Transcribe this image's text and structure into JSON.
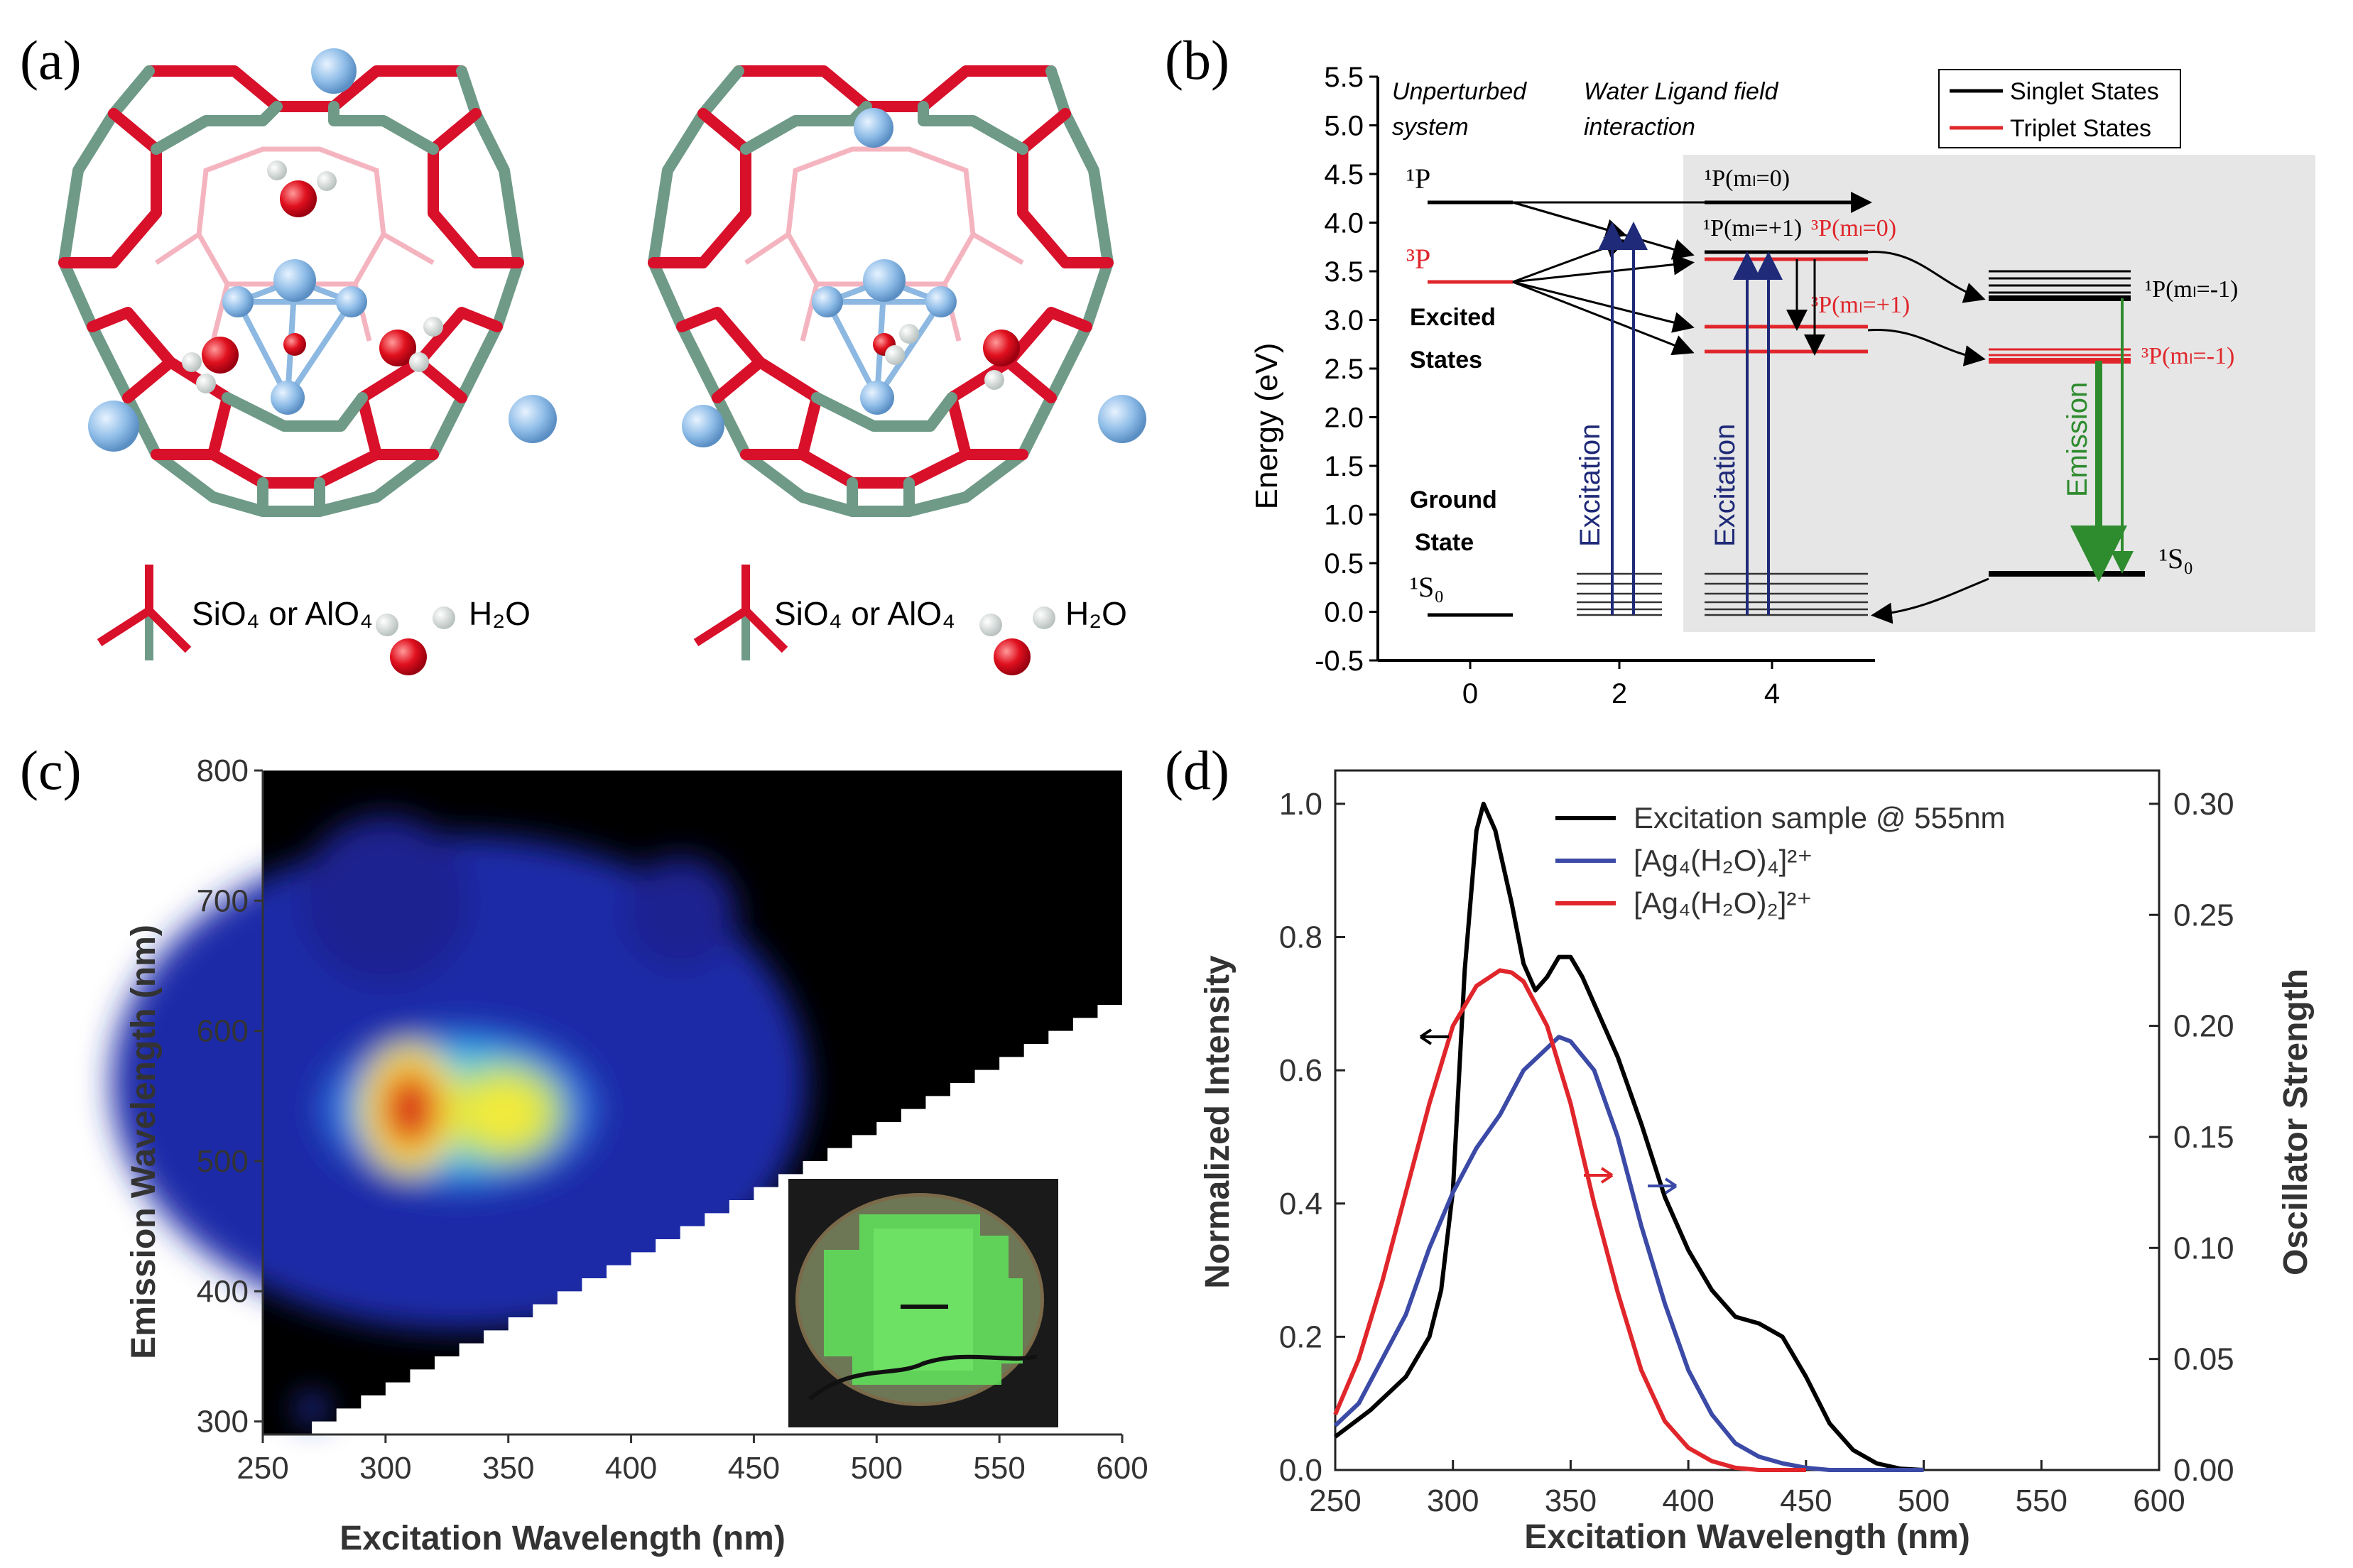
{
  "panels": {
    "a": {
      "label": "(a)",
      "legend_left": {
        "tetra_text": "SiO₄ or AlO₄",
        "water_text": "H₂O"
      },
      "legend_right": {
        "tetra_text": "SiO₄ or AlO₄",
        "water_text": "H₂O"
      }
    },
    "b": {
      "label": "(b)",
      "header_left": [
        "Unperturbed",
        "system"
      ],
      "header_mid": [
        "Water Ligand field",
        "interaction"
      ],
      "legend": [
        "Singlet States",
        "Triplet States"
      ],
      "ylabel": "Energy (eV)",
      "yticks": [
        "5.5",
        "5.0",
        "4.5",
        "4.0",
        "3.5",
        "3.0",
        "2.5",
        "2.0",
        "1.5",
        "1.0",
        "0.5",
        "0.0",
        "-0.5"
      ],
      "xticks": [
        "0",
        "2",
        "4"
      ],
      "labels": {
        "P1": "¹P",
        "P3": "³P",
        "excited": [
          "Excited",
          "States"
        ],
        "ground": [
          "Ground",
          "State"
        ],
        "S0": "¹S₀",
        "p0": "¹P(mₗ=0)",
        "pp1": "¹P(mₗ=+1)",
        "tp0": "³P(mₗ=0)",
        "tpp1": "³P(mₗ=+1)",
        "pm1": "¹P(mₗ=-1)",
        "tpm1": "³P(mₗ=-1)",
        "s0r": "¹S₀",
        "excitation1": "Excitation",
        "excitation2": "Excitation",
        "emission": "Emission"
      },
      "colors": {
        "singlet": "#000000",
        "triplet": "#e0262b",
        "excitation": "#1f2a78",
        "emission": "#2e8b2e",
        "shade": "#e6e6e6"
      }
    },
    "c": {
      "label": "(c)",
      "xlabel": "Excitation Wavelength (nm)",
      "ylabel": "Emission Wavelength (nm)",
      "xticks": [
        "250",
        "300",
        "350",
        "400",
        "450",
        "500",
        "550",
        "600"
      ],
      "yticks": [
        "300",
        "400",
        "500",
        "600",
        "700",
        "800"
      ]
    },
    "d": {
      "label": "(d)",
      "xlabel": "Excitation Wavelength (nm)",
      "ylabel_left": "Normalized Intensity",
      "ylabel_right": "Oscillator Strength",
      "xticks": [
        "250",
        "300",
        "350",
        "400",
        "450",
        "500",
        "550",
        "600"
      ],
      "yticks_left": [
        "0.0",
        "0.2",
        "0.4",
        "0.6",
        "0.8",
        "1.0"
      ],
      "yticks_right": [
        "0.00",
        "0.05",
        "0.10",
        "0.15",
        "0.20",
        "0.25",
        "0.30"
      ],
      "legend": [
        "Excitation sample @ 555nm",
        "[Ag₄(H₂O)₄]²⁺",
        "[Ag₄(H₂O)₂]²⁺"
      ]
    }
  },
  "chart_data": [
    {
      "type": "line",
      "panel": "b",
      "ylabel": "Energy (eV)",
      "ylim": [
        -0.5,
        5.5
      ],
      "xlim": [
        -1,
        11
      ],
      "levels_eV": {
        "1P": 4.2,
        "3P": 3.4,
        "1S0": 0.0,
        "1P_ml0": 4.2,
        "1P_ml+1": 3.65,
        "3P_ml0": 3.6,
        "3P_ml+1": 2.9,
        "3P_ml+1_b": 2.65,
        "1P_ml-1": 3.2,
        "3P_ml-1": 2.6,
        "1S0_right": 0.4
      }
    },
    {
      "type": "heatmap",
      "panel": "c",
      "xlabel": "Excitation Wavelength (nm)",
      "ylabel": "Emission Wavelength (nm)",
      "xlim": [
        250,
        600
      ],
      "ylim": [
        290,
        800
      ],
      "peaks": [
        {
          "x": 310,
          "y": 540,
          "intensity": 1.0
        },
        {
          "x": 348,
          "y": 537,
          "intensity": 0.75
        },
        {
          "x": 420,
          "y": 690,
          "intensity": 0.25
        },
        {
          "x": 270,
          "y": 310,
          "intensity": 0.4
        }
      ]
    },
    {
      "type": "line",
      "panel": "d",
      "xlabel": "Excitation Wavelength (nm)",
      "ylabel": "Normalized Intensity",
      "xlim": [
        250,
        600
      ],
      "ylim": [
        0,
        1.05
      ],
      "y2lim": [
        0,
        0.315
      ],
      "series": [
        {
          "name": "Excitation sample @ 555nm",
          "axis": "left",
          "color": "#000000",
          "x": [
            250,
            265,
            280,
            290,
            295,
            300,
            305,
            310,
            313,
            318,
            325,
            330,
            335,
            340,
            345,
            350,
            355,
            360,
            370,
            380,
            390,
            400,
            410,
            420,
            430,
            440,
            450,
            460,
            470,
            480,
            490,
            500
          ],
          "y": [
            0.05,
            0.09,
            0.14,
            0.2,
            0.27,
            0.42,
            0.75,
            0.96,
            1.0,
            0.96,
            0.85,
            0.76,
            0.72,
            0.74,
            0.77,
            0.77,
            0.74,
            0.7,
            0.62,
            0.52,
            0.41,
            0.33,
            0.27,
            0.23,
            0.22,
            0.2,
            0.14,
            0.07,
            0.03,
            0.01,
            0.002,
            0.0
          ]
        },
        {
          "name": "[Ag₄(H₂O)₄]²⁺",
          "axis": "right",
          "color": "#3b4aa6",
          "x": [
            250,
            260,
            270,
            280,
            290,
            300,
            310,
            320,
            330,
            340,
            345,
            350,
            360,
            370,
            380,
            390,
            400,
            410,
            420,
            430,
            440,
            450,
            460,
            470,
            480,
            490,
            500
          ],
          "y": [
            0.02,
            0.03,
            0.05,
            0.07,
            0.1,
            0.125,
            0.145,
            0.16,
            0.18,
            0.19,
            0.195,
            0.193,
            0.18,
            0.15,
            0.11,
            0.075,
            0.045,
            0.025,
            0.012,
            0.006,
            0.003,
            0.001,
            0.0,
            0.0,
            0.0,
            0.0,
            0.0
          ]
        },
        {
          "name": "[Ag₄(H₂O)₂]²⁺",
          "axis": "right",
          "color": "#e0262b",
          "x": [
            250,
            260,
            270,
            280,
            290,
            300,
            310,
            320,
            325,
            330,
            340,
            350,
            360,
            370,
            380,
            390,
            400,
            410,
            420,
            430,
            440,
            450
          ],
          "y": [
            0.025,
            0.05,
            0.085,
            0.125,
            0.165,
            0.2,
            0.218,
            0.225,
            0.224,
            0.22,
            0.2,
            0.165,
            0.12,
            0.08,
            0.045,
            0.022,
            0.01,
            0.004,
            0.001,
            0.0,
            0.0,
            0.0
          ]
        }
      ]
    }
  ]
}
